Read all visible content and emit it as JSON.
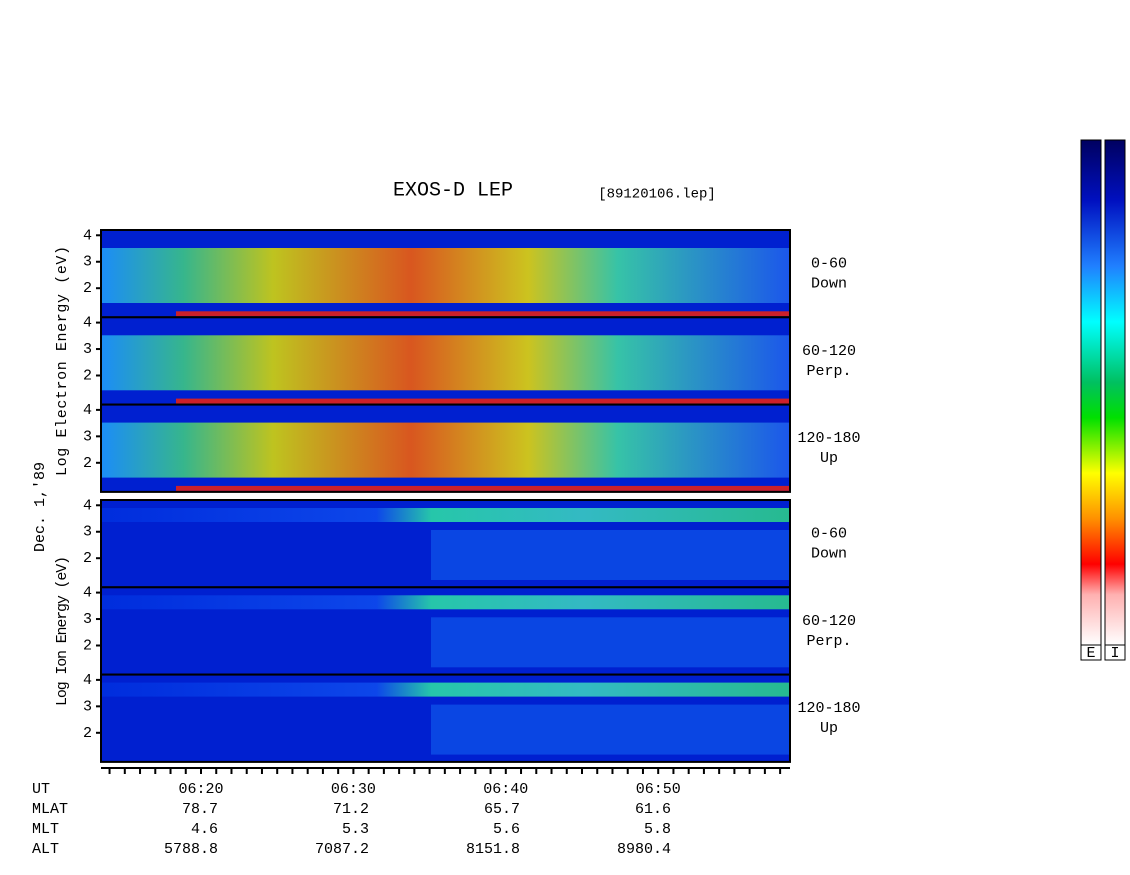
{
  "header": {
    "title": "EXOS-D LEP",
    "file": "[89120106.lep]"
  },
  "date_label": "Dec. 1,'89",
  "groups": [
    {
      "label": "Log Electron Energy (eV)",
      "ylim": [
        0.9,
        4.2
      ],
      "yticks": [
        2,
        3,
        4
      ],
      "panels": [
        {
          "angle": "0-60",
          "direction": "Down"
        },
        {
          "angle": "60-120",
          "direction": "Perp."
        },
        {
          "angle": "120-180",
          "direction": "Up"
        }
      ]
    },
    {
      "label": "Log Ion Energy (eV)",
      "ylim": [
        0.9,
        4.2
      ],
      "yticks": [
        2,
        3,
        4
      ],
      "panels": [
        {
          "angle": "0-60",
          "direction": "Down"
        },
        {
          "angle": "60-120",
          "direction": "Perp."
        },
        {
          "angle": "120-180",
          "direction": "Up"
        }
      ]
    }
  ],
  "time_ticks": [
    "06:20",
    "06:30",
    "06:40",
    "06:50"
  ],
  "orbit": {
    "rows": [
      {
        "name": "UT"
      },
      {
        "name": "MLAT",
        "values": [
          "78.7",
          "71.2",
          "65.7",
          "61.6"
        ]
      },
      {
        "name": "MLT",
        "values": [
          "4.6",
          "5.3",
          "5.6",
          "5.8"
        ]
      },
      {
        "name": "ALT",
        "values": [
          "5788.8",
          "7087.2",
          "8151.8",
          "8980.4"
        ]
      }
    ]
  },
  "colorbars": [
    "E",
    "I"
  ]
}
